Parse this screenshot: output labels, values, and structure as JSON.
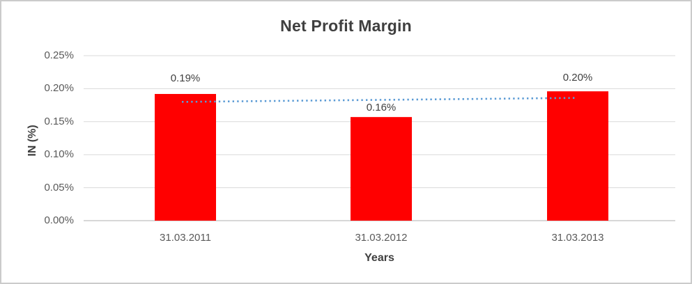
{
  "window": {
    "background": "#ffffff",
    "border_color": "#cbcbcb"
  },
  "chart_data": {
    "type": "bar",
    "title": "Net Profit Margin",
    "xlabel": "Years",
    "ylabel": "IN (%)",
    "categories": [
      "31.03.2011",
      "31.03.2012",
      "31.03.2013"
    ],
    "values": [
      0.192,
      0.157,
      0.196
    ],
    "data_labels": [
      "0.19%",
      "0.16%",
      "0.20%"
    ],
    "y_ticks": [
      "0.25%",
      "0.20%",
      "0.15%",
      "0.10%",
      "0.05%",
      "0.00%"
    ],
    "ylim": [
      0,
      0.25
    ],
    "grid": true,
    "legend_position": "none",
    "bar_color": "#ff0000",
    "gridline_color": "#d9d9d9",
    "axis_line_color": "#bfbfbf",
    "tick_text_color": "#595959",
    "title_color": "#3f3f3f",
    "trendline": {
      "type": "linear",
      "style": "dotted",
      "color": "#5b9bd5",
      "start_value": 0.18,
      "end_value": 0.186
    }
  }
}
